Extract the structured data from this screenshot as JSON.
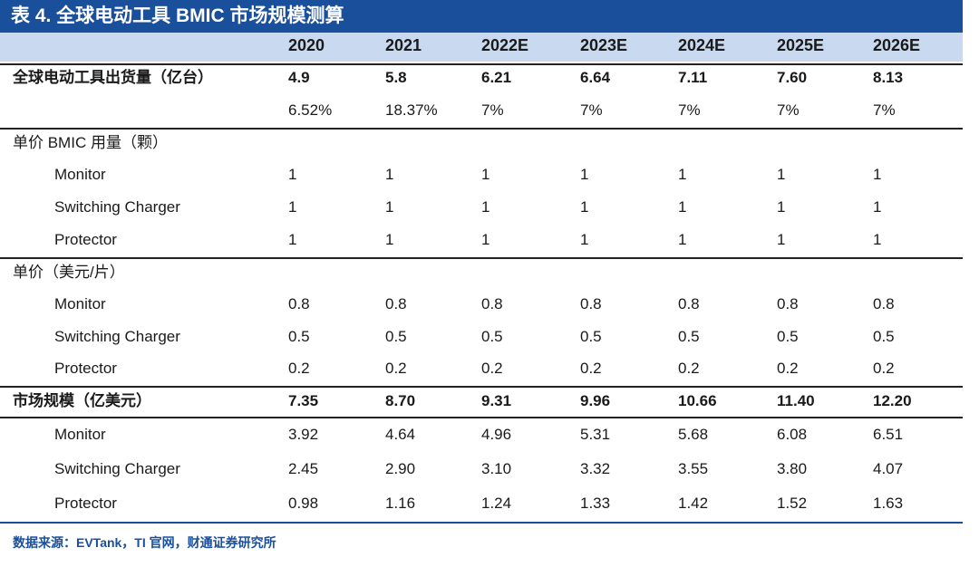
{
  "title": "表 4. 全球电动工具 BMIC 市场规模测算",
  "header": {
    "years": [
      "2020",
      "2021",
      "2022E",
      "2023E",
      "2024E",
      "2025E",
      "2026E"
    ]
  },
  "sections": {
    "shipments": {
      "label": "全球电动工具出货量（亿台）",
      "values": [
        "4.9",
        "5.8",
        "6.21",
        "6.64",
        "7.11",
        "7.60",
        "8.13"
      ],
      "growth": [
        "6.52%",
        "18.37%",
        "7%",
        "7%",
        "7%",
        "7%",
        "7%"
      ]
    },
    "usage": {
      "label": "单价 BMIC 用量（颗）",
      "rows": [
        {
          "name": "Monitor",
          "values": [
            "1",
            "1",
            "1",
            "1",
            "1",
            "1",
            "1"
          ]
        },
        {
          "name": "Switching Charger",
          "values": [
            "1",
            "1",
            "1",
            "1",
            "1",
            "1",
            "1"
          ]
        },
        {
          "name": "Protector",
          "values": [
            "1",
            "1",
            "1",
            "1",
            "1",
            "1",
            "1"
          ]
        }
      ]
    },
    "price": {
      "label": "单价（美元/片）",
      "rows": [
        {
          "name": "Monitor",
          "values": [
            "0.8",
            "0.8",
            "0.8",
            "0.8",
            "0.8",
            "0.8",
            "0.8"
          ]
        },
        {
          "name": "Switching Charger",
          "values": [
            "0.5",
            "0.5",
            "0.5",
            "0.5",
            "0.5",
            "0.5",
            "0.5"
          ]
        },
        {
          "name": "Protector",
          "values": [
            "0.2",
            "0.2",
            "0.2",
            "0.2",
            "0.2",
            "0.2",
            "0.2"
          ]
        }
      ]
    },
    "market": {
      "label": "市场规模（亿美元）",
      "values": [
        "7.35",
        "8.70",
        "9.31",
        "9.96",
        "10.66",
        "11.40",
        "12.20"
      ],
      "rows": [
        {
          "name": "Monitor",
          "values": [
            "3.92",
            "4.64",
            "4.96",
            "5.31",
            "5.68",
            "6.08",
            "6.51"
          ]
        },
        {
          "name": "Switching Charger",
          "values": [
            "2.45",
            "2.90",
            "3.10",
            "3.32",
            "3.55",
            "3.80",
            "4.07"
          ]
        },
        {
          "name": "Protector",
          "values": [
            "0.98",
            "1.16",
            "1.24",
            "1.33",
            "1.42",
            "1.52",
            "1.63"
          ]
        }
      ]
    }
  },
  "source": "数据来源：EVTank，TI 官网，财通证券研究所",
  "colors": {
    "title_bg": "#1a4f9c",
    "header_bg": "#c9d9ef",
    "source_text": "#1a4f9c"
  }
}
